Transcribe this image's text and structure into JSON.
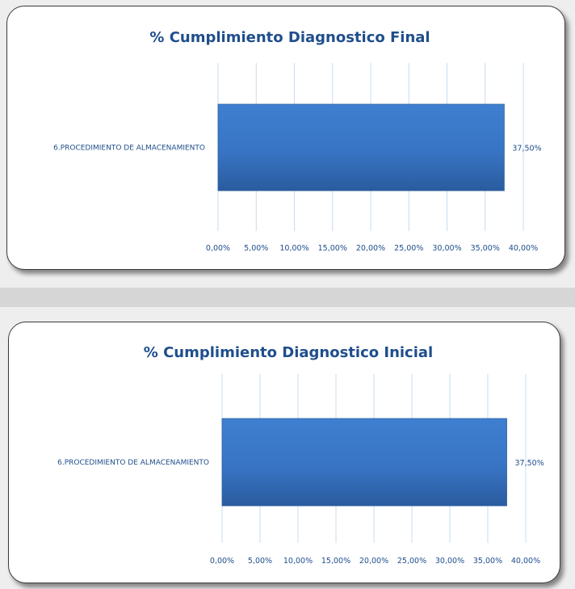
{
  "chart_data": [
    {
      "type": "bar",
      "orientation": "horizontal",
      "title": "% Cumplimiento Diagnostico Final",
      "categories": [
        "6.PROCEDIMIENTO DE ALMACENAMIENTO"
      ],
      "values": [
        37.5
      ],
      "data_labels": [
        "37,50%"
      ],
      "xlim": [
        0,
        40
      ],
      "ticks": [
        0,
        5,
        10,
        15,
        20,
        25,
        30,
        35,
        40
      ],
      "tick_labels": [
        "0,00%",
        "5,00%",
        "10,00%",
        "15,00%",
        "20,00%",
        "25,00%",
        "30,00%",
        "35,00%",
        "40,00%"
      ],
      "grid": true,
      "legend": "none",
      "bar_color": "#3874c4"
    },
    {
      "type": "bar",
      "orientation": "horizontal",
      "title": "% Cumplimiento Diagnostico Inicial",
      "categories": [
        "6.PROCEDIMIENTO DE ALMACENAMIENTO"
      ],
      "values": [
        37.5
      ],
      "data_labels": [
        "37,50%"
      ],
      "xlim": [
        0,
        40
      ],
      "ticks": [
        0,
        5,
        10,
        15,
        20,
        25,
        30,
        35,
        40
      ],
      "tick_labels": [
        "0,00%",
        "5,00%",
        "10,00%",
        "15,00%",
        "20,00%",
        "25,00%",
        "30,00%",
        "35,00%",
        "40,00%"
      ],
      "grid": true,
      "legend": "none",
      "bar_color": "#3874c4"
    }
  ]
}
